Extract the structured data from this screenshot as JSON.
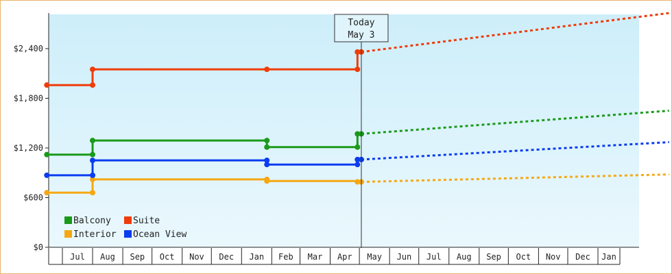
{
  "chart_data": {
    "type": "line",
    "y_ticks": [
      {
        "value": 0,
        "label": "$0"
      },
      {
        "value": 600,
        "label": "$600"
      },
      {
        "value": 1200,
        "label": "$1,200"
      },
      {
        "value": 1800,
        "label": "$1,800"
      },
      {
        "value": 2400,
        "label": "$2,400"
      }
    ],
    "ylim": [
      0,
      2400
    ],
    "x_months": [
      {
        "date": "2023-07-01",
        "label": "Jul"
      },
      {
        "date": "2023-08-01",
        "label": "Aug"
      },
      {
        "date": "2023-09-01",
        "label": "Sep"
      },
      {
        "date": "2023-10-01",
        "label": "Oct"
      },
      {
        "date": "2023-11-01",
        "label": "Nov"
      },
      {
        "date": "2023-12-01",
        "label": "Dec"
      },
      {
        "date": "2024-01-01",
        "label": "Jan"
      },
      {
        "date": "2024-02-01",
        "label": "Feb"
      },
      {
        "date": "2024-03-01",
        "label": "Mar"
      },
      {
        "date": "2024-04-01",
        "label": "Apr"
      },
      {
        "date": "2024-05-01",
        "label": "May"
      },
      {
        "date": "2024-06-01",
        "label": "Jun"
      },
      {
        "date": "2024-07-01",
        "label": "Jul"
      },
      {
        "date": "2024-08-01",
        "label": "Aug"
      },
      {
        "date": "2024-09-01",
        "label": "Sep"
      },
      {
        "date": "2024-10-01",
        "label": "Oct"
      },
      {
        "date": "2024-11-01",
        "label": "Nov"
      },
      {
        "date": "2024-12-01",
        "label": "Dec"
      },
      {
        "date": "2025-01-01",
        "label": "Jan"
      }
    ],
    "today": {
      "date": "2024-05-03",
      "title": "Today",
      "label": "May 3"
    },
    "series": [
      {
        "name": "Balcony",
        "color": "#1a9a1a",
        "history": [
          {
            "x": "2023-06-15",
            "y": 1120
          },
          {
            "x": "2023-08-01",
            "y": 1120
          },
          {
            "x": "2023-08-01",
            "y": 1290
          },
          {
            "x": "2024-01-27",
            "y": 1290
          },
          {
            "x": "2024-01-27",
            "y": 1210
          },
          {
            "x": "2024-04-29",
            "y": 1210
          },
          {
            "x": "2024-04-29",
            "y": 1370
          },
          {
            "x": "2024-05-03",
            "y": 1370
          }
        ],
        "markers": [
          {
            "x": "2023-06-15",
            "y": 1120
          },
          {
            "x": "2023-08-01",
            "y": 1120
          },
          {
            "x": "2023-08-01",
            "y": 1290
          },
          {
            "x": "2024-01-27",
            "y": 1290
          },
          {
            "x": "2024-01-27",
            "y": 1210
          },
          {
            "x": "2024-04-29",
            "y": 1210
          },
          {
            "x": "2024-04-29",
            "y": 1370
          },
          {
            "x": "2024-05-03",
            "y": 1370
          }
        ],
        "forecast": [
          {
            "x": "2024-05-03",
            "y": 1370
          },
          {
            "x": "2025-03-15",
            "y": 1650
          }
        ]
      },
      {
        "name": "Suite",
        "color": "#f03c0a",
        "history": [
          {
            "x": "2023-06-15",
            "y": 1960
          },
          {
            "x": "2023-08-01",
            "y": 1960
          },
          {
            "x": "2023-08-01",
            "y": 2150
          },
          {
            "x": "2024-01-27",
            "y": 2150
          },
          {
            "x": "2024-04-29",
            "y": 2150
          },
          {
            "x": "2024-04-29",
            "y": 2360
          },
          {
            "x": "2024-05-03",
            "y": 2360
          }
        ],
        "markers": [
          {
            "x": "2023-06-15",
            "y": 1960
          },
          {
            "x": "2023-08-01",
            "y": 1960
          },
          {
            "x": "2023-08-01",
            "y": 2150
          },
          {
            "x": "2024-01-27",
            "y": 2150
          },
          {
            "x": "2024-04-29",
            "y": 2150
          },
          {
            "x": "2024-04-29",
            "y": 2360
          },
          {
            "x": "2024-05-03",
            "y": 2360
          }
        ],
        "forecast": [
          {
            "x": "2024-05-03",
            "y": 2360
          },
          {
            "x": "2025-03-15",
            "y": 2830
          }
        ]
      },
      {
        "name": "Interior",
        "color": "#f5a814",
        "history": [
          {
            "x": "2023-06-15",
            "y": 660
          },
          {
            "x": "2023-08-01",
            "y": 660
          },
          {
            "x": "2023-08-01",
            "y": 820
          },
          {
            "x": "2024-01-27",
            "y": 820
          },
          {
            "x": "2024-01-27",
            "y": 800
          },
          {
            "x": "2024-04-29",
            "y": 800
          },
          {
            "x": "2024-04-29",
            "y": 790
          },
          {
            "x": "2024-05-03",
            "y": 790
          }
        ],
        "markers": [
          {
            "x": "2023-06-15",
            "y": 660
          },
          {
            "x": "2023-08-01",
            "y": 660
          },
          {
            "x": "2023-08-01",
            "y": 820
          },
          {
            "x": "2024-01-27",
            "y": 820
          },
          {
            "x": "2024-01-27",
            "y": 800
          },
          {
            "x": "2024-04-29",
            "y": 790
          },
          {
            "x": "2024-05-03",
            "y": 790
          }
        ],
        "forecast": [
          {
            "x": "2024-05-03",
            "y": 790
          },
          {
            "x": "2025-03-15",
            "y": 880
          }
        ]
      },
      {
        "name": "Ocean View",
        "color": "#0a3cf0",
        "history": [
          {
            "x": "2023-06-15",
            "y": 870
          },
          {
            "x": "2023-08-01",
            "y": 870
          },
          {
            "x": "2023-08-01",
            "y": 1050
          },
          {
            "x": "2024-01-27",
            "y": 1050
          },
          {
            "x": "2024-01-27",
            "y": 1000
          },
          {
            "x": "2024-04-29",
            "y": 1000
          },
          {
            "x": "2024-04-29",
            "y": 1060
          },
          {
            "x": "2024-05-03",
            "y": 1060
          }
        ],
        "markers": [
          {
            "x": "2023-06-15",
            "y": 870
          },
          {
            "x": "2023-08-01",
            "y": 870
          },
          {
            "x": "2023-08-01",
            "y": 1050
          },
          {
            "x": "2024-01-27",
            "y": 1050
          },
          {
            "x": "2024-01-27",
            "y": 1000
          },
          {
            "x": "2024-04-29",
            "y": 1000
          },
          {
            "x": "2024-04-29",
            "y": 1060
          },
          {
            "x": "2024-05-03",
            "y": 1060
          }
        ],
        "forecast": [
          {
            "x": "2024-05-03",
            "y": 1060
          },
          {
            "x": "2025-03-15",
            "y": 1270
          }
        ]
      }
    ],
    "legend": {
      "placement": "bottom-left",
      "order": [
        "Balcony",
        "Suite",
        "Interior",
        "Ocean View"
      ]
    },
    "background_gradient": [
      "#cdeefa",
      "#eaf8fd"
    ],
    "grid": false
  }
}
